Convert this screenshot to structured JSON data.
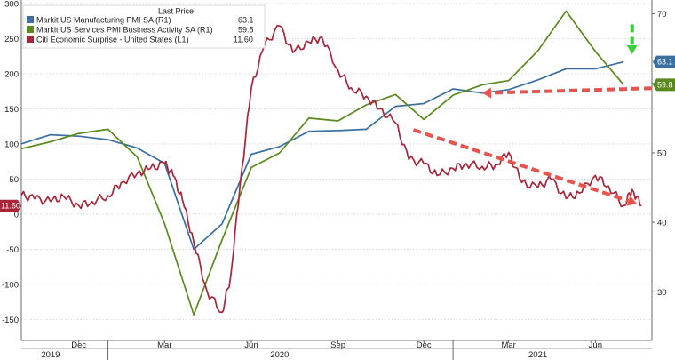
{
  "chart_data": {
    "type": "line",
    "legend": {
      "header": "Last Price",
      "placement": "top-left",
      "entries": [
        {
          "label": "Markit US Manufacturing PMI SA  (R1)",
          "value": "63.1",
          "color": "#3b6fa0"
        },
        {
          "label": "Markit US Services PMI Business Activity SA  (R1)",
          "value": "59.8",
          "color": "#5a8a1e"
        },
        {
          "label": "Citi Economic Surprise - United States  (L1)",
          "value": "11.60",
          "color": "#a8253a"
        }
      ]
    },
    "left_axis": {
      "range": [
        -180,
        305
      ],
      "ticks": [
        -150,
        -100,
        -50,
        0,
        50,
        100,
        150,
        200,
        250,
        300
      ],
      "tick_labels": [
        "-150",
        "-100",
        "-50",
        "0",
        "50",
        "100",
        "150",
        "200",
        "250",
        "300"
      ]
    },
    "right_axis": {
      "range": [
        23.0,
        72.0
      ],
      "ticks": [
        30,
        40,
        50,
        60,
        70
      ],
      "tick_labels": [
        "30",
        "40",
        "50",
        "60",
        "70"
      ]
    },
    "x_axis": {
      "range": [
        "2019-10-01",
        "2021-07-31"
      ],
      "month_ticks": [
        "Dec",
        "Mar",
        "Jun",
        "Sep",
        "Dec",
        "Mar",
        "Jun"
      ],
      "month_tick_dates": [
        "2019-12-01",
        "2020-03-01",
        "2020-06-01",
        "2020-09-01",
        "2020-12-01",
        "2021-03-01",
        "2021-06-01"
      ],
      "year_labels": [
        "2019",
        "2020",
        "2021"
      ],
      "year_label_dates": [
        "2019-11-01",
        "2020-07-01",
        "2021-04-01"
      ],
      "year_dividers": [
        "2020-01-01",
        "2021-01-01"
      ]
    },
    "grid": "horizontal-dashed",
    "series": [
      {
        "name": "Markit US Manufacturing PMI SA  (R1)",
        "axis": "right",
        "color": "#3b6fa0",
        "points": [
          [
            "2019-10-01",
            51.3
          ],
          [
            "2019-11-01",
            52.6
          ],
          [
            "2019-12-01",
            52.4
          ],
          [
            "2020-01-01",
            51.9
          ],
          [
            "2020-02-01",
            50.7
          ],
          [
            "2020-03-01",
            48.5
          ],
          [
            "2020-04-01",
            36.1
          ],
          [
            "2020-05-01",
            39.8
          ],
          [
            "2020-06-01",
            49.8
          ],
          [
            "2020-07-01",
            50.9
          ],
          [
            "2020-08-01",
            53.1
          ],
          [
            "2020-09-01",
            53.2
          ],
          [
            "2020-10-01",
            53.4
          ],
          [
            "2020-11-01",
            56.7
          ],
          [
            "2020-12-01",
            57.1
          ],
          [
            "2021-01-01",
            59.2
          ],
          [
            "2021-02-01",
            58.6
          ],
          [
            "2021-03-01",
            59.1
          ],
          [
            "2021-04-01",
            60.5
          ],
          [
            "2021-05-01",
            62.1
          ],
          [
            "2021-06-01",
            62.1
          ],
          [
            "2021-07-01",
            63.1
          ]
        ]
      },
      {
        "name": "Markit US Services PMI Business Activity SA  (R1)",
        "axis": "right",
        "color": "#5a8a1e",
        "points": [
          [
            "2019-10-01",
            50.6
          ],
          [
            "2019-11-01",
            51.6
          ],
          [
            "2019-12-01",
            52.8
          ],
          [
            "2020-01-01",
            53.4
          ],
          [
            "2020-02-01",
            49.4
          ],
          [
            "2020-03-01",
            39.8
          ],
          [
            "2020-04-01",
            26.7
          ],
          [
            "2020-05-01",
            37.5
          ],
          [
            "2020-06-01",
            47.9
          ],
          [
            "2020-07-01",
            50.0
          ],
          [
            "2020-08-01",
            55.0
          ],
          [
            "2020-09-01",
            54.6
          ],
          [
            "2020-10-01",
            56.9
          ],
          [
            "2020-11-01",
            58.4
          ],
          [
            "2020-12-01",
            54.8
          ],
          [
            "2021-01-01",
            58.3
          ],
          [
            "2021-02-01",
            59.8
          ],
          [
            "2021-03-01",
            60.4
          ],
          [
            "2021-04-01",
            64.7
          ],
          [
            "2021-05-01",
            70.4
          ],
          [
            "2021-06-01",
            64.6
          ],
          [
            "2021-07-01",
            59.8
          ]
        ]
      },
      {
        "name": "Citi Economic Surprise - United States  (L1)",
        "axis": "left",
        "color": "#a8253a",
        "points": [
          [
            "2019-10-01",
            27
          ],
          [
            "2019-10-15",
            22
          ],
          [
            "2019-11-01",
            18
          ],
          [
            "2019-11-15",
            25
          ],
          [
            "2019-12-01",
            12
          ],
          [
            "2019-12-15",
            18
          ],
          [
            "2020-01-01",
            26
          ],
          [
            "2020-01-15",
            45
          ],
          [
            "2020-02-01",
            58
          ],
          [
            "2020-02-15",
            65
          ],
          [
            "2020-03-01",
            72
          ],
          [
            "2020-03-10",
            55
          ],
          [
            "2020-03-20",
            20
          ],
          [
            "2020-04-01",
            -40
          ],
          [
            "2020-04-15",
            -110
          ],
          [
            "2020-05-01",
            -140
          ],
          [
            "2020-05-10",
            -90
          ],
          [
            "2020-05-20",
            40
          ],
          [
            "2020-06-01",
            180
          ],
          [
            "2020-06-15",
            240
          ],
          [
            "2020-07-01",
            268
          ],
          [
            "2020-07-15",
            230
          ],
          [
            "2020-08-01",
            245
          ],
          [
            "2020-08-15",
            252
          ],
          [
            "2020-09-01",
            205
          ],
          [
            "2020-09-15",
            180
          ],
          [
            "2020-10-01",
            168
          ],
          [
            "2020-10-15",
            150
          ],
          [
            "2020-11-01",
            130
          ],
          [
            "2020-11-15",
            78
          ],
          [
            "2020-12-01",
            72
          ],
          [
            "2020-12-15",
            55
          ],
          [
            "2021-01-01",
            65
          ],
          [
            "2021-01-15",
            72
          ],
          [
            "2021-02-01",
            68
          ],
          [
            "2021-02-15",
            70
          ],
          [
            "2021-03-01",
            88
          ],
          [
            "2021-03-15",
            45
          ],
          [
            "2021-04-01",
            38
          ],
          [
            "2021-04-15",
            50
          ],
          [
            "2021-05-01",
            22
          ],
          [
            "2021-05-15",
            30
          ],
          [
            "2021-06-01",
            55
          ],
          [
            "2021-06-15",
            40
          ],
          [
            "2021-07-01",
            12
          ],
          [
            "2021-07-10",
            35
          ],
          [
            "2021-07-20",
            11.6
          ]
        ]
      }
    ],
    "end_value_tags": [
      {
        "text": "11.60",
        "axis": "left",
        "value": 11.6,
        "color": "#a8253a"
      },
      {
        "text": "63.1",
        "axis": "right",
        "value": 63.1,
        "color": "#3b6fa0"
      },
      {
        "text": "59.8",
        "axis": "right",
        "value": 59.8,
        "color": "#5a8a1e"
      }
    ],
    "annotations": [
      {
        "kind": "dashed-arrow",
        "color": "#e8544c",
        "from": [
          "2021-07-31",
          59.3
        ],
        "to": [
          "2021-02-01",
          58.6
        ],
        "axis": "right"
      },
      {
        "kind": "dashed-arrow",
        "color": "#e8544c",
        "from": [
          "2020-11-20",
          120
        ],
        "to": [
          "2021-07-15",
          15
        ],
        "axis": "left"
      },
      {
        "kind": "dashed-arrow",
        "color": "#3ccc3c",
        "from": [
          "2021-07-10",
          68.5
        ],
        "to": [
          "2021-07-10",
          64.2
        ],
        "axis": "right"
      }
    ]
  }
}
